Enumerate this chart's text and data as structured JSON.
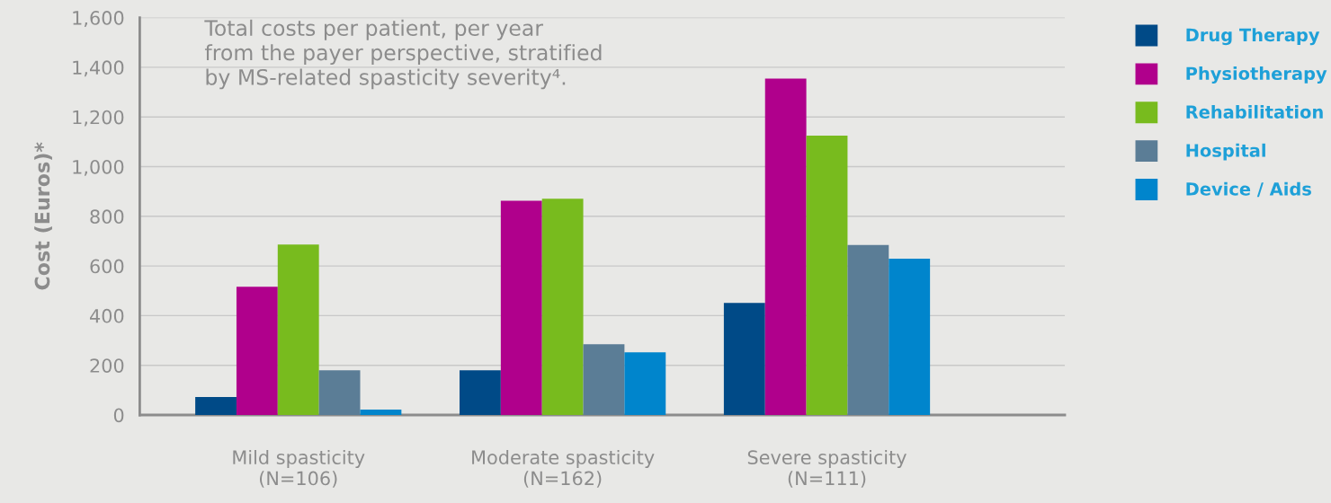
{
  "chart_data": {
    "type": "bar",
    "title": "Total costs per patient, per year\nfrom the payer perspective, stratified\nby MS-related spasticity severity⁴.",
    "ylabel": "Cost (Euros)*",
    "categories": [
      "Mild spasticity\n(N=106)",
      "Moderate spasticity\n(N=162)",
      "Severe spasticity\n(N=111)"
    ],
    "series": [
      {
        "name": "Drug Therapy",
        "color": "#004a87",
        "values": [
          72,
          180,
          451
        ]
      },
      {
        "name": "Physiotherapy",
        "color": "#b0008c",
        "values": [
          516,
          863,
          1354
        ]
      },
      {
        "name": "Rehabilitation",
        "color": "#78bb1e",
        "values": [
          686,
          871,
          1125
        ]
      },
      {
        "name": "Hospital",
        "color": "#5b7d96",
        "values": [
          180,
          285,
          684
        ]
      },
      {
        "name": "Device / Aids",
        "color": "#0085cc",
        "values": [
          22,
          252,
          629
        ]
      }
    ],
    "ylim": [
      0,
      1600
    ],
    "yticks": [
      {
        "value": 0,
        "label": "0"
      },
      {
        "value": 200,
        "label": "200"
      },
      {
        "value": 400,
        "label": "400"
      },
      {
        "value": 600,
        "label": "600"
      },
      {
        "value": 800,
        "label": "800"
      },
      {
        "value": 1000,
        "label": "1,000"
      },
      {
        "value": 1200,
        "label": "1,200"
      },
      {
        "value": 1400,
        "label": "1,400"
      },
      {
        "value": 1600,
        "label": "1,600"
      }
    ],
    "grid": "y",
    "legend": "right"
  }
}
